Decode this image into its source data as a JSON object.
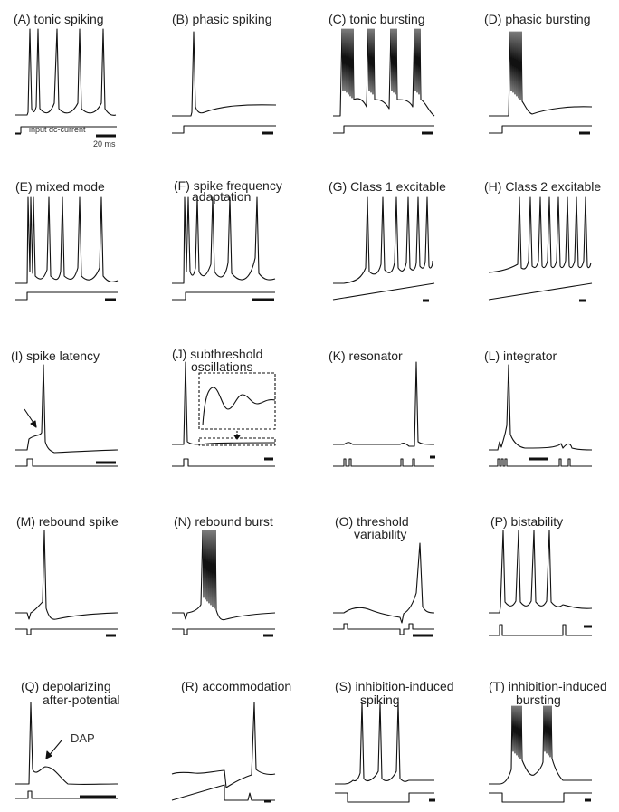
{
  "figure": {
    "input_label": "input dc-current",
    "scale_label": "20 ms",
    "dap_label": "DAP",
    "colors": {
      "trace": "#111111",
      "background": "#ffffff"
    }
  },
  "panels": [
    {
      "id": "A",
      "title": [
        "(A) tonic spiking"
      ]
    },
    {
      "id": "B",
      "title": [
        "(B) phasic spiking"
      ]
    },
    {
      "id": "C",
      "title": [
        "(C) tonic bursting"
      ]
    },
    {
      "id": "D",
      "title": [
        "(D) phasic bursting"
      ]
    },
    {
      "id": "E",
      "title": [
        "(E) mixed mode"
      ]
    },
    {
      "id": "F",
      "title": [
        "(F) spike frequency",
        "adaptation"
      ]
    },
    {
      "id": "G",
      "title": [
        "(G) Class 1 excitable"
      ]
    },
    {
      "id": "H",
      "title": [
        "(H) Class 2 excitable"
      ]
    },
    {
      "id": "I",
      "title": [
        "(I) spike latency"
      ]
    },
    {
      "id": "J",
      "title": [
        "(J) subthreshold",
        "oscillations"
      ]
    },
    {
      "id": "K",
      "title": [
        "(K) resonator"
      ]
    },
    {
      "id": "L",
      "title": [
        "(L) integrator"
      ]
    },
    {
      "id": "M",
      "title": [
        "(M) rebound spike"
      ]
    },
    {
      "id": "N",
      "title": [
        "(N) rebound burst"
      ]
    },
    {
      "id": "O",
      "title": [
        "(O) threshold",
        "variability"
      ]
    },
    {
      "id": "P",
      "title": [
        "(P) bistability"
      ]
    },
    {
      "id": "Q",
      "title": [
        "(Q) depolarizing",
        "after-potential"
      ]
    },
    {
      "id": "R",
      "title": [
        "(R) accommodation"
      ]
    },
    {
      "id": "S",
      "title": [
        "(S) inhibition-induced",
        "spiking"
      ]
    },
    {
      "id": "T",
      "title": [
        "(T) inhibition-induced",
        "bursting"
      ]
    }
  ]
}
